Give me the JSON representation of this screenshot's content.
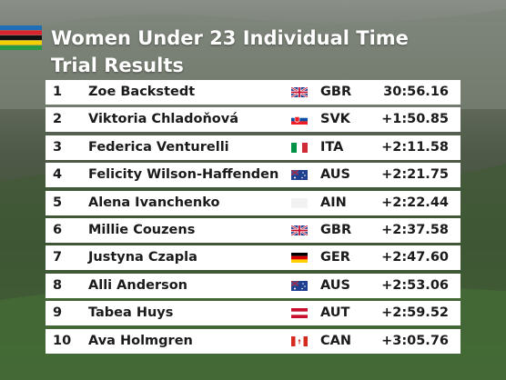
{
  "header": {
    "title": "Women Under 23 Individual Time Trial Results"
  },
  "table": {
    "rows": [
      [
        1,
        "Zoe Backstedt",
        "GBR",
        "30:56.16"
      ],
      [
        2,
        "Viktoria Chladoňová",
        "SVK",
        "+1:50.85"
      ],
      [
        3,
        "Federica Venturelli",
        "ITA",
        "+2:11.58"
      ],
      [
        4,
        "Felicity Wilson-Haffenden",
        "AUS",
        "+2:21.75"
      ],
      [
        5,
        "Alena Ivanchenko",
        "AIN",
        "+2:22.44"
      ],
      [
        6,
        "Millie Couzens",
        "GBR",
        "+2:37.58"
      ],
      [
        7,
        "Justyna Czapla",
        "GER",
        "+2:47.60"
      ],
      [
        8,
        "Alli Anderson",
        "AUS",
        "+2:53.06"
      ],
      [
        9,
        "Tabea Huys",
        "AUT",
        "+2:59.52"
      ],
      [
        10,
        "Ava Holmgren",
        "CAN",
        "+3:05.76"
      ]
    ]
  }
}
